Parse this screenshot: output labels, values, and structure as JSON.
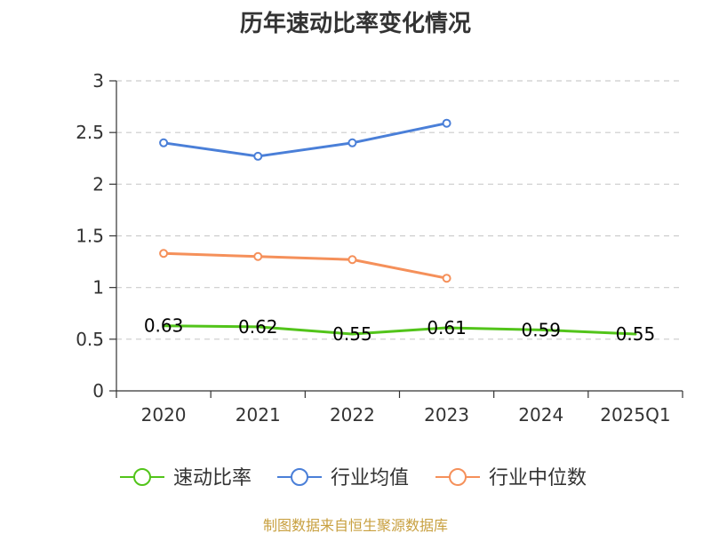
{
  "chart_data": {
    "type": "line",
    "title": "历年速动比率变化情况",
    "categories": [
      "2020",
      "2021",
      "2022",
      "2023",
      "2024",
      "2025Q1"
    ],
    "ylim": [
      0,
      3
    ],
    "yticks": [
      "0",
      "0.5",
      "1",
      "1.5",
      "2",
      "2.5",
      "3"
    ],
    "ytick_values": [
      0,
      0.5,
      1,
      1.5,
      2,
      2.5,
      3
    ],
    "grid": true,
    "legend_position": "bottom",
    "series": [
      {
        "name": "速动比率",
        "color": "#52c41a",
        "values": [
          0.63,
          0.62,
          0.55,
          0.61,
          0.59,
          0.55
        ],
        "labels": [
          "0.63",
          "0.62",
          "0.55",
          "0.61",
          "0.59",
          "0.55"
        ],
        "show_labels": true,
        "show_markers": false
      },
      {
        "name": "行业均值",
        "color": "#4a7fd8",
        "values": [
          2.4,
          2.27,
          2.4,
          2.59,
          null,
          null
        ],
        "show_labels": false,
        "show_markers": true
      },
      {
        "name": "行业中位数",
        "color": "#f5905a",
        "values": [
          1.33,
          1.3,
          1.27,
          1.09,
          null,
          null
        ],
        "show_labels": false,
        "show_markers": true
      }
    ]
  },
  "footer": {
    "source": "制图数据来自恒生聚源数据库"
  }
}
